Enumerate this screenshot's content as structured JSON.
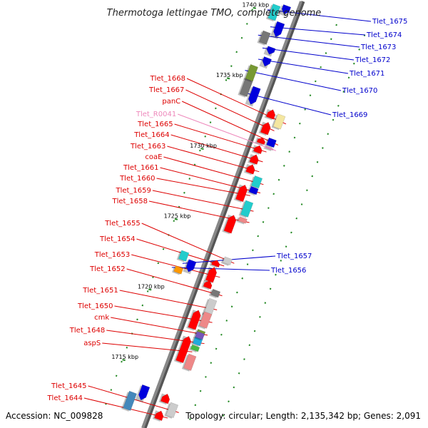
{
  "title": "Thermotoga lettingae TMO, complete genome",
  "footer": {
    "accession": "Accession: NC_009828",
    "summary": "Topology: circular; Length: 2,135,342 bp; Genes: 2,091"
  },
  "colors": {
    "left_label": "#dd0000",
    "right_label": "#0000cc",
    "rna_label": "#ee88bb",
    "backbone": "#888888",
    "tick": "#228822"
  },
  "scale": [
    {
      "kbp": 1740,
      "label": "1740 kbp"
    },
    {
      "kbp": 1735,
      "label": "1735 kbp"
    },
    {
      "kbp": 1730,
      "label": "1730 kbp"
    },
    {
      "kbp": 1725,
      "label": "1725 kbp"
    },
    {
      "kbp": 1720,
      "label": "1720 kbp"
    },
    {
      "kbp": 1715,
      "label": "1715 kbp"
    }
  ],
  "left_genes": [
    {
      "label": "Tlet_1668",
      "pos": 1733.5,
      "kind": "cds",
      "lane": 2,
      "color": "#f4e6a0",
      "len": 0.9,
      "arrow": false
    },
    {
      "label": "Tlet_1667",
      "pos": 1732.8,
      "kind": "cds",
      "lane": 1,
      "color": "#ff0000",
      "len": 0.8,
      "arrow": true
    },
    {
      "label": "panC",
      "pos": 1732.0,
      "kind": "cds",
      "lane": 2,
      "color": "#0000dd",
      "len": 0.5,
      "arrow": false
    },
    {
      "label": "Tlet_R0041",
      "pos": 1731.6,
      "kind": "rna",
      "lane": 2,
      "color": "#ee88bb",
      "len": 0.1,
      "arrow": false
    },
    {
      "label": "Tlet_1665",
      "pos": 1731.3,
      "kind": "cds",
      "lane": 1,
      "color": "#ff0000",
      "len": 0.5,
      "arrow": true
    },
    {
      "label": "Tlet_1664",
      "pos": 1730.6,
      "kind": "cds",
      "lane": 1,
      "color": "#ff0000",
      "len": 0.6,
      "arrow": true
    },
    {
      "label": "Tlet_1663",
      "pos": 1729.9,
      "kind": "cds",
      "lane": 1,
      "color": "#ff0000",
      "len": 0.6,
      "arrow": true
    },
    {
      "label": "coaE",
      "pos": 1729.2,
      "kind": "cds",
      "lane": 2,
      "color": "#22cccc",
      "len": 0.7,
      "arrow": false
    },
    {
      "label": "Tlet_1661",
      "pos": 1728.6,
      "kind": "cds",
      "lane": 2,
      "color": "#0000dd",
      "len": 0.4,
      "arrow": false
    },
    {
      "label": "Tlet_1660",
      "pos": 1728.2,
      "kind": "cds",
      "lane": 1,
      "color": "#ff0000",
      "len": 1.1,
      "arrow": true
    },
    {
      "label": "Tlet_1659",
      "pos": 1727.3,
      "kind": "cds",
      "lane": 2,
      "color": "#22cccc",
      "len": 1.0,
      "arrow": false
    },
    {
      "label": "Tlet_1658",
      "pos": 1726.5,
      "kind": "cds",
      "lane": 2,
      "color": "#ee8888",
      "len": 0.3,
      "arrow": false
    },
    {
      "label": "Tlet_1655",
      "pos": 1723.6,
      "kind": "cds",
      "lane": 2,
      "color": "#cccccc",
      "len": 0.4,
      "arrow": false
    },
    {
      "label": "Tlet_1654",
      "pos": 1723.2,
      "kind": "cds",
      "lane": 1,
      "color": "#ff0000",
      "len": 0.4,
      "arrow": true
    },
    {
      "label": "Tlet_1653",
      "pos": 1722.4,
      "kind": "cds",
      "lane": 1,
      "color": "#ff0000",
      "len": 1.0,
      "arrow": true
    },
    {
      "label": "Tlet_1652",
      "pos": 1721.3,
      "kind": "cds",
      "lane": 2,
      "color": "#777777",
      "len": 0.4,
      "arrow": false
    },
    {
      "label": "Tlet_1651",
      "pos": 1720.3,
      "kind": "cds",
      "lane": 2,
      "color": "#cccccc",
      "len": 1.1,
      "arrow": false
    },
    {
      "label": "Tlet_1650",
      "pos": 1719.4,
      "kind": "cds",
      "lane": 2,
      "color": "#ee8888",
      "len": 1.0,
      "arrow": false
    },
    {
      "label": "cmk",
      "pos": 1718.5,
      "kind": "cds",
      "lane": 2,
      "color": "#779933",
      "len": 0.3,
      "arrow": false
    },
    {
      "label": "Tlet_1648",
      "pos": 1717.9,
      "kind": "cds",
      "lane": 2,
      "color": "#22aadd",
      "len": 0.5,
      "arrow": false
    },
    {
      "label": "aspS",
      "pos": 1717.1,
      "kind": "cds",
      "lane": 1,
      "color": "#ff0000",
      "len": 1.8,
      "arrow": true
    },
    {
      "label": "Tlet_1645",
      "pos": 1713.0,
      "kind": "cds",
      "lane": 2,
      "color": "#cccccc",
      "len": 0.9,
      "arrow": false
    },
    {
      "label": "Tlet_1644",
      "pos": 1712.4,
      "kind": "cds",
      "lane": 1,
      "color": "#ff0000",
      "len": 0.6,
      "arrow": true
    }
  ],
  "extra_blocks": [
    {
      "pos": 1726.0,
      "lane": 1,
      "color": "#ff0000",
      "len": 1.2,
      "arrow": true
    },
    {
      "pos": 1719.2,
      "lane": 1,
      "color": "#ff0000",
      "len": 1.3,
      "arrow": true
    },
    {
      "pos": 1718.3,
      "lane": 2,
      "color": "#7755bb",
      "len": 0.4,
      "arrow": false
    },
    {
      "pos": 1717.4,
      "lane": 2,
      "color": "#44bb44",
      "len": 0.3,
      "arrow": false
    },
    {
      "pos": 1716.4,
      "lane": 2,
      "color": "#ee8888",
      "len": 1.0,
      "arrow": false
    },
    {
      "pos": 1721.7,
      "lane": 1,
      "color": "#ff0000",
      "len": 0.5,
      "arrow": true
    },
    {
      "pos": 1731.9,
      "lane": 1,
      "color": "#ff0000",
      "len": 0.4,
      "arrow": true
    },
    {
      "pos": 1733.8,
      "lane": 1,
      "color": "#ff0000",
      "len": 0.6,
      "arrow": true
    },
    {
      "pos": 1713.6,
      "lane": 1,
      "color": "#ff0000",
      "len": 0.6,
      "arrow": true
    }
  ],
  "right_genes": [
    {
      "label": "Tlet_1675",
      "pos": 1740.2,
      "lane": 2,
      "color": "#22cccc",
      "len": 1.0,
      "arrow": false
    },
    {
      "label": "Tlet_1674",
      "pos": 1739.2,
      "lane": 1,
      "color": "#0000dd",
      "len": 1.0,
      "arrow": true
    },
    {
      "label": "Tlet_1673",
      "pos": 1738.4,
      "lane": 2,
      "color": "#777777",
      "len": 0.8,
      "arrow": false
    },
    {
      "label": "Tlet_1672",
      "pos": 1737.7,
      "lane": 1,
      "color": "#0000dd",
      "len": 0.5,
      "arrow": true
    },
    {
      "label": "Tlet_1671",
      "pos": 1736.9,
      "lane": 1,
      "color": "#0000dd",
      "len": 0.6,
      "arrow": true
    },
    {
      "label": "Tlet_1670",
      "pos": 1735.9,
      "lane": 2,
      "color": "#779933",
      "len": 1.0,
      "arrow": false
    },
    {
      "label": "Tlet_1669",
      "pos": 1734.5,
      "lane": 1,
      "color": "#0000dd",
      "len": 1.2,
      "arrow": true
    },
    {
      "label": "Tlet_1657",
      "pos": 1722.4,
      "lane": 1,
      "color": "#0000dd",
      "len": 0.8,
      "arrow": true
    },
    {
      "label": "Tlet_1656",
      "pos": 1721.9,
      "lane": 2,
      "color": "#ff9900",
      "len": 0.4,
      "arrow": false
    }
  ],
  "right_extra_blocks": [
    {
      "pos": 1722.9,
      "lane": 2,
      "color": "#22cccc",
      "len": 0.6,
      "arrow": false
    },
    {
      "pos": 1734.9,
      "lane": 2,
      "color": "#777777",
      "len": 1.2,
      "arrow": false
    },
    {
      "pos": 1740.6,
      "lane": 1,
      "color": "#0000dd",
      "len": 0.6,
      "arrow": true
    },
    {
      "pos": 1713.4,
      "lane": 1,
      "color": "#0000dd",
      "len": 1.0,
      "arrow": true
    },
    {
      "pos": 1712.6,
      "lane": 2,
      "color": "#4488bb",
      "len": 1.2,
      "arrow": false
    }
  ]
}
